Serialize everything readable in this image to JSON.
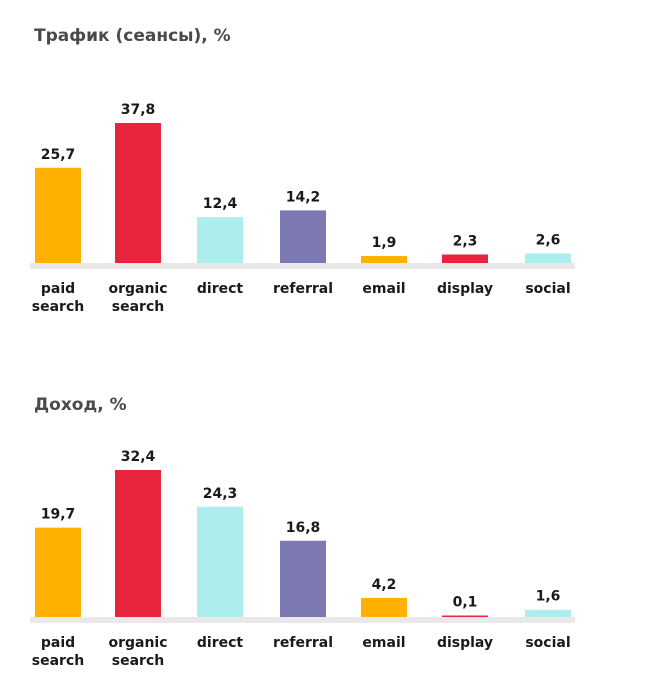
{
  "chart_data": [
    {
      "type": "bar",
      "title": "Трафик (сеансы), %",
      "categories": [
        [
          "paid",
          "search"
        ],
        [
          "organic",
          "search"
        ],
        [
          "direct"
        ],
        [
          "referral"
        ],
        [
          "email"
        ],
        [
          "display"
        ],
        [
          "social"
        ]
      ],
      "values": [
        25.7,
        37.8,
        12.4,
        14.2,
        1.9,
        2.3,
        2.6
      ],
      "value_labels": [
        "25,7",
        "37,8",
        "12,4",
        "14,2",
        "1,9",
        "2,3",
        "2,6"
      ],
      "colors": [
        "#FFB000",
        "#E8253D",
        "#AEEDEE",
        "#7B78B2",
        "#FFB000",
        "#E8253D",
        "#AEEDEE"
      ],
      "xlabel": "",
      "ylabel": "",
      "ylim": [
        0,
        37.8
      ],
      "grid": false,
      "legend": "none"
    },
    {
      "type": "bar",
      "title": "Доход, %",
      "categories": [
        [
          "paid",
          "search"
        ],
        [
          "organic",
          "search"
        ],
        [
          "direct"
        ],
        [
          "referral"
        ],
        [
          "email"
        ],
        [
          "display"
        ],
        [
          "social"
        ]
      ],
      "values": [
        19.7,
        32.4,
        24.3,
        16.8,
        4.2,
        0.1,
        1.6
      ],
      "value_labels": [
        "19,7",
        "32,4",
        "24,3",
        "16,8",
        "4,2",
        "0,1",
        "1,6"
      ],
      "colors": [
        "#FFB000",
        "#E8253D",
        "#AEEDEE",
        "#7B78B2",
        "#FFB000",
        "#E8253D",
        "#AEEDEE"
      ],
      "xlabel": "",
      "ylabel": "",
      "ylim": [
        0,
        32.4
      ],
      "grid": false,
      "legend": "none"
    }
  ]
}
